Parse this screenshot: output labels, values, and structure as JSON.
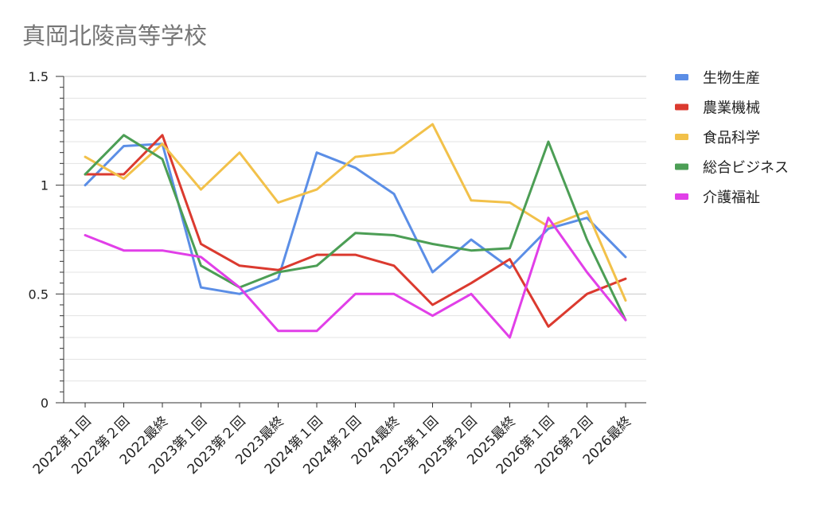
{
  "chart_data": {
    "type": "line",
    "title": "真岡北陵高等学校",
    "xlabel": "",
    "ylabel": "",
    "ylim": [
      0,
      1.5
    ],
    "yticks": [
      "0",
      "0.5",
      "1",
      "1.5"
    ],
    "grid": true,
    "legend_position": "right",
    "categories": [
      "2022第１回",
      "2022第２回",
      "2022最終",
      "2023第１回",
      "2023第２回",
      "2023最終",
      "2024第１回",
      "2024第２回",
      "2024最終",
      "2025第１回",
      "2025第２回",
      "2025最終",
      "2026第１回",
      "2026第２回",
      "2026最終"
    ],
    "series": [
      {
        "name": "生物生産",
        "color": "#5b8ee6",
        "values": [
          1.0,
          1.18,
          1.19,
          0.53,
          0.5,
          0.57,
          1.15,
          1.08,
          0.96,
          0.6,
          0.75,
          0.62,
          0.8,
          0.85,
          0.67
        ]
      },
      {
        "name": "農業機械",
        "color": "#db3a2f",
        "values": [
          1.05,
          1.05,
          1.23,
          0.73,
          0.63,
          0.61,
          0.68,
          0.68,
          0.63,
          0.45,
          0.55,
          0.66,
          0.35,
          0.5,
          0.57
        ]
      },
      {
        "name": "食品科学",
        "color": "#f2c14a",
        "values": [
          1.13,
          1.03,
          1.19,
          0.98,
          1.15,
          0.92,
          0.98,
          1.13,
          1.15,
          1.28,
          0.93,
          0.92,
          0.81,
          0.88,
          0.47
        ]
      },
      {
        "name": "総合ビジネス",
        "color": "#4c9e55",
        "values": [
          1.05,
          1.23,
          1.12,
          0.63,
          0.53,
          0.6,
          0.63,
          0.78,
          0.77,
          0.73,
          0.7,
          0.71,
          1.2,
          0.75,
          0.38
        ]
      },
      {
        "name": "介護福祉",
        "color": "#e13fe8",
        "values": [
          0.77,
          0.7,
          0.7,
          0.67,
          0.53,
          0.33,
          0.33,
          0.5,
          0.5,
          0.4,
          0.5,
          0.3,
          0.85,
          0.6,
          0.38
        ]
      }
    ]
  }
}
